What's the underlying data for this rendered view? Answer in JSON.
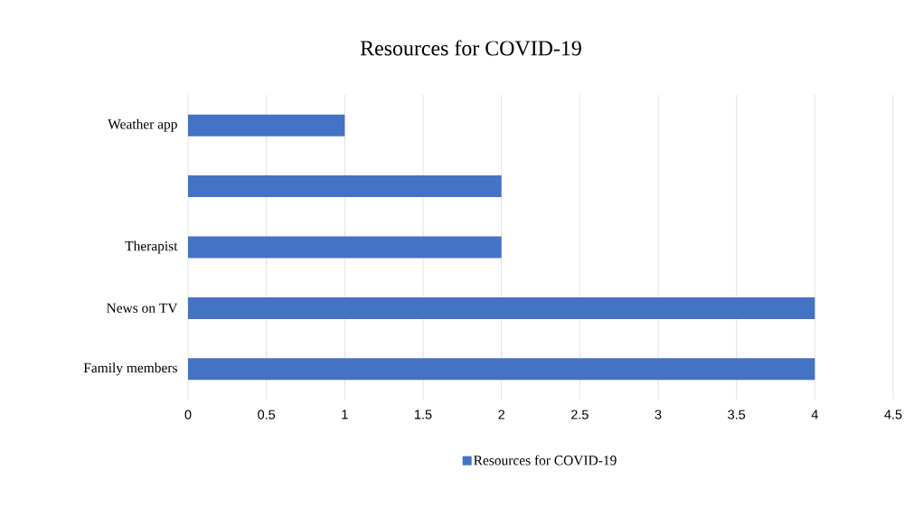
{
  "chart_data": {
    "type": "bar",
    "orientation": "horizontal",
    "title": "Resources for COVID-19",
    "categories": [
      "Weather app",
      null,
      "Therapist",
      "News on TV",
      "Family members"
    ],
    "series": [
      {
        "name": "Resources for COVID-19",
        "color": "#4472c4",
        "values": [
          1,
          2,
          2,
          4,
          4
        ]
      }
    ],
    "xlim": [
      0,
      4.5
    ],
    "xticks": [
      0,
      0.5,
      1,
      1.5,
      2,
      2.5,
      3,
      3.5,
      4,
      4.5
    ],
    "grid": "x",
    "legend": "bottom"
  }
}
